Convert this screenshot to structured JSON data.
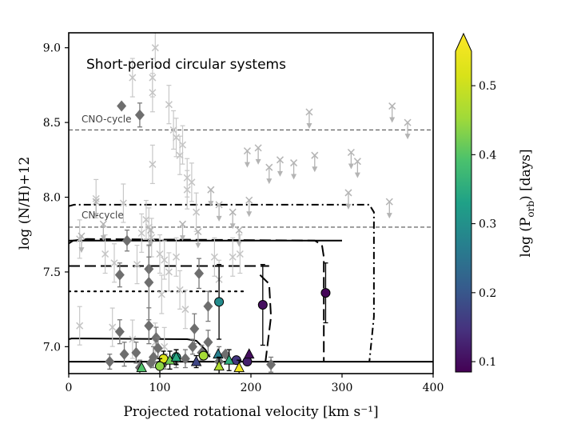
{
  "chart_data": {
    "type": "scatter",
    "title": "Short-period circular systems",
    "xlabel": "Projected rotational velocity [km s⁻¹]",
    "ylabel": "log (N/H)+12",
    "xlim": [
      0,
      400
    ],
    "ylim": [
      6.82,
      9.1
    ],
    "xticks": [
      0,
      100,
      200,
      300,
      400
    ],
    "yticks": [
      7.0,
      7.5,
      8.0,
      8.5,
      9.0
    ],
    "xtick_labels": [
      "0",
      "100",
      "200",
      "300",
      "400"
    ],
    "ytick_labels": [
      "7.0",
      "7.5",
      "8.0",
      "8.5",
      "9.0"
    ],
    "colorbar": {
      "label": "log (P",
      "label_sub": "orb",
      "label_tail": ") [days]",
      "range": [
        0.085,
        0.55
      ],
      "ticks": [
        0.1,
        0.2,
        0.3,
        0.4,
        0.5
      ],
      "tick_labels": [
        "0.1",
        "0.2",
        "0.3",
        "0.4",
        "0.5"
      ],
      "colormap": "viridis",
      "extend": "max"
    },
    "reference_lines": [
      {
        "name": "CNO-cycle",
        "label": "CNO-cycle",
        "y": 8.45
      },
      {
        "name": "CN-cycle",
        "label": "CN-cycle",
        "y": 7.8
      }
    ],
    "tracks": [
      {
        "style": "solid",
        "points": [
          [
            0,
            6.9
          ],
          [
            400,
            6.9
          ]
        ]
      },
      {
        "style": "solid",
        "points": [
          [
            0,
            7.05
          ],
          [
            3,
            7.055
          ],
          [
            15,
            7.055
          ],
          [
            130,
            7.05
          ],
          [
            140,
            7.04
          ],
          [
            150,
            6.98
          ],
          [
            155,
            6.93
          ]
        ]
      },
      {
        "style": "solid",
        "points": [
          [
            0,
            7.71
          ],
          [
            300,
            7.71
          ]
        ]
      },
      {
        "style": "longdash",
        "points": [
          [
            0,
            7.54
          ],
          [
            220,
            7.54
          ]
        ]
      },
      {
        "style": "longdash",
        "points": [
          [
            0,
            7.69
          ],
          [
            5,
            7.71
          ],
          [
            20,
            7.72
          ],
          [
            270,
            7.71
          ],
          [
            278,
            7.68
          ],
          [
            280,
            7.6
          ],
          [
            280,
            6.9
          ]
        ]
      },
      {
        "style": "longdash",
        "points": [
          [
            210,
            7.48
          ],
          [
            220,
            7.42
          ],
          [
            222,
            7.2
          ],
          [
            218,
            7.0
          ],
          [
            216,
            6.9
          ]
        ]
      },
      {
        "style": "dashdot",
        "points": [
          [
            0,
            7.94
          ],
          [
            6,
            7.95
          ],
          [
            330,
            7.95
          ],
          [
            335,
            7.9
          ],
          [
            335,
            7.2
          ],
          [
            330,
            6.9
          ]
        ]
      },
      {
        "style": "dotted",
        "points": [
          [
            0,
            7.37
          ],
          [
            195,
            7.37
          ]
        ]
      }
    ],
    "gray_crosses": [
      {
        "x": 70,
        "y": 8.8
      },
      {
        "x": 92,
        "y": 8.8
      },
      {
        "x": 92,
        "y": 8.7
      },
      {
        "x": 95,
        "y": 9.0
      },
      {
        "x": 110,
        "y": 8.62
      },
      {
        "x": 115,
        "y": 8.45
      },
      {
        "x": 118,
        "y": 8.4
      },
      {
        "x": 122,
        "y": 8.28
      },
      {
        "x": 92,
        "y": 8.22
      },
      {
        "x": 125,
        "y": 8.35
      },
      {
        "x": 130,
        "y": 8.05
      },
      {
        "x": 130,
        "y": 8.13
      },
      {
        "x": 135,
        "y": 8.1
      },
      {
        "x": 140,
        "y": 7.9
      },
      {
        "x": 30,
        "y": 7.99
      },
      {
        "x": 60,
        "y": 7.96
      },
      {
        "x": 80,
        "y": 7.76
      },
      {
        "x": 85,
        "y": 7.85
      },
      {
        "x": 88,
        "y": 7.8
      },
      {
        "x": 91,
        "y": 7.73
      },
      {
        "x": 100,
        "y": 7.62
      },
      {
        "x": 105,
        "y": 7.58
      },
      {
        "x": 110,
        "y": 7.5
      },
      {
        "x": 118,
        "y": 7.6
      },
      {
        "x": 122,
        "y": 7.38
      },
      {
        "x": 12,
        "y": 7.72
      },
      {
        "x": 40,
        "y": 7.62
      },
      {
        "x": 50,
        "y": 7.56
      },
      {
        "x": 75,
        "y": 7.55
      },
      {
        "x": 102,
        "y": 7.35
      },
      {
        "x": 128,
        "y": 7.25
      },
      {
        "x": 12,
        "y": 7.14
      },
      {
        "x": 48,
        "y": 7.13
      },
      {
        "x": 160,
        "y": 7.6
      },
      {
        "x": 165,
        "y": 7.45
      },
      {
        "x": 70,
        "y": 7.05
      },
      {
        "x": 95,
        "y": 7.03
      },
      {
        "x": 105,
        "y": 7.0
      },
      {
        "x": 180,
        "y": 7.6
      },
      {
        "x": 188,
        "y": 7.62
      }
    ],
    "upper_limits": [
      {
        "x": 264,
        "y": 8.57
      },
      {
        "x": 355,
        "y": 8.61
      },
      {
        "x": 372,
        "y": 8.5
      },
      {
        "x": 232,
        "y": 8.25
      },
      {
        "x": 247,
        "y": 8.23
      },
      {
        "x": 270,
        "y": 8.28
      },
      {
        "x": 310,
        "y": 8.3
      },
      {
        "x": 317,
        "y": 8.24
      },
      {
        "x": 196,
        "y": 8.31
      },
      {
        "x": 208,
        "y": 8.33
      },
      {
        "x": 220,
        "y": 8.2
      },
      {
        "x": 156,
        "y": 8.05
      },
      {
        "x": 165,
        "y": 7.95
      },
      {
        "x": 180,
        "y": 7.9
      },
      {
        "x": 198,
        "y": 7.98
      },
      {
        "x": 307,
        "y": 8.03
      },
      {
        "x": 352,
        "y": 7.97
      },
      {
        "x": 187,
        "y": 7.78
      },
      {
        "x": 125,
        "y": 7.82
      },
      {
        "x": 142,
        "y": 7.77
      },
      {
        "x": 30,
        "y": 7.97
      },
      {
        "x": 38,
        "y": 7.82
      },
      {
        "x": 14,
        "y": 7.74
      },
      {
        "x": 90,
        "y": 7.78
      }
    ],
    "gray_diamonds": [
      {
        "x": 58,
        "y": 8.61,
        "err": 0.0
      },
      {
        "x": 78,
        "y": 8.55,
        "err": 0.08
      },
      {
        "x": 64,
        "y": 7.71,
        "err": 0.07
      },
      {
        "x": 56,
        "y": 7.48,
        "err": 0.08
      },
      {
        "x": 88,
        "y": 7.52,
        "err": 0.08
      },
      {
        "x": 88,
        "y": 7.43,
        "err": 0.25
      },
      {
        "x": 143,
        "y": 7.49,
        "err": 0.1
      },
      {
        "x": 153,
        "y": 7.27,
        "err": 0.1
      },
      {
        "x": 56,
        "y": 7.1,
        "err": 0.08
      },
      {
        "x": 88,
        "y": 7.14,
        "err": 0.12
      },
      {
        "x": 96,
        "y": 7.06,
        "err": 0.07
      },
      {
        "x": 138,
        "y": 7.12,
        "err": 0.1
      },
      {
        "x": 153,
        "y": 7.03,
        "err": 0.08
      },
      {
        "x": 61,
        "y": 6.95,
        "err": 0.08
      },
      {
        "x": 74,
        "y": 6.96,
        "err": 0.07
      },
      {
        "x": 93,
        "y": 6.93,
        "err": 0.07
      },
      {
        "x": 98,
        "y": 6.99,
        "err": 0.07
      },
      {
        "x": 128,
        "y": 6.92,
        "err": 0.06
      },
      {
        "x": 136,
        "y": 7.0,
        "err": 0.05
      },
      {
        "x": 146,
        "y": 6.96,
        "err": 0.05
      },
      {
        "x": 45,
        "y": 6.9,
        "err": 0.05
      },
      {
        "x": 106,
        "y": 6.9,
        "err": 0.05
      },
      {
        "x": 118,
        "y": 6.91,
        "err": 0.05
      },
      {
        "x": 165,
        "y": 6.9,
        "err": 0.1
      },
      {
        "x": 222,
        "y": 6.88,
        "err": 0.05
      },
      {
        "x": 78,
        "y": 6.86,
        "err": 0.05
      },
      {
        "x": 90,
        "y": 6.89,
        "err": 0.0
      },
      {
        "x": 172,
        "y": 6.95,
        "err": 0.0
      }
    ],
    "circles": [
      {
        "x": 282,
        "y": 7.36,
        "err": 0.2,
        "logP": 0.09
      },
      {
        "x": 213,
        "y": 7.28,
        "err": 0.27,
        "logP": 0.1
      },
      {
        "x": 165,
        "y": 7.3,
        "err": 0.25,
        "logP": 0.28
      },
      {
        "x": 104,
        "y": 6.92,
        "err": 0.05,
        "logP": 0.5
      },
      {
        "x": 100,
        "y": 6.87,
        "err": 0.05,
        "logP": 0.42
      },
      {
        "x": 118,
        "y": 6.93,
        "err": 0.05,
        "logP": 0.3
      },
      {
        "x": 148,
        "y": 6.94,
        "err": 0.0,
        "logP": 0.44
      },
      {
        "x": 184,
        "y": 6.91,
        "err": 0.0,
        "logP": 0.15
      },
      {
        "x": 196,
        "y": 6.9,
        "err": 0.0,
        "logP": 0.12
      }
    ],
    "triangles": [
      {
        "x": 80,
        "y": 6.86,
        "err": 0.0,
        "logP": 0.38
      },
      {
        "x": 111,
        "y": 6.91,
        "err": 0.06,
        "logP": 0.4
      },
      {
        "x": 118,
        "y": 6.93,
        "err": 0.05,
        "logP": 0.33
      },
      {
        "x": 140,
        "y": 6.9,
        "err": 0.04,
        "logP": 0.17
      },
      {
        "x": 164,
        "y": 6.95,
        "err": 0.0,
        "logP": 0.26
      },
      {
        "x": 165,
        "y": 6.87,
        "err": 0.06,
        "logP": 0.45
      },
      {
        "x": 176,
        "y": 6.91,
        "err": 0.07,
        "logP": 0.34
      },
      {
        "x": 187,
        "y": 6.86,
        "err": 0.05,
        "logP": 0.53
      },
      {
        "x": 198,
        "y": 6.95,
        "err": 0.0,
        "logP": 0.1
      }
    ]
  }
}
